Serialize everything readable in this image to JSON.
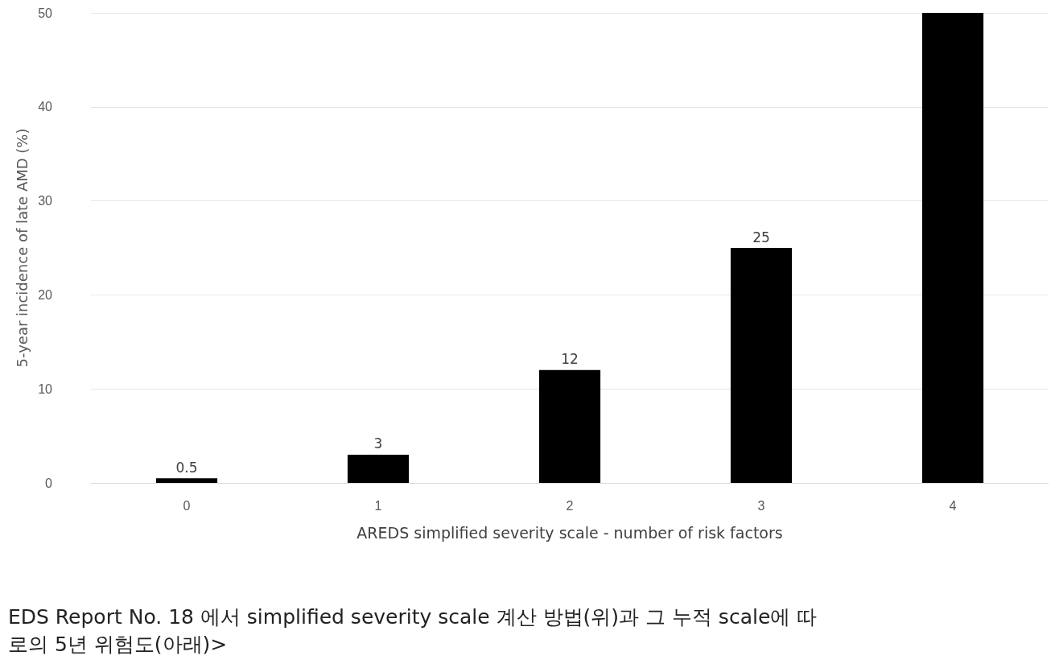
{
  "chart_data": {
    "type": "bar",
    "xlabel": "AREDS simplified severity scale - number of risk factors",
    "ylabel": "5-year incidence of late AMD (%)",
    "categories": [
      "0",
      "1",
      "2",
      "3",
      "4"
    ],
    "values": [
      0.5,
      3,
      12,
      25,
      50
    ],
    "color": "#000000",
    "value_labels": [
      "0.5",
      "3",
      "12",
      "25",
      null
    ],
    "ylim": [
      0,
      50
    ],
    "yticks": [
      0,
      10,
      20,
      30,
      40,
      50
    ],
    "grid": "y",
    "annotations": [
      "EDS Report No. 18 에서 simplified severity scale 계산 방법(위)과 그 누적 scale에 따",
      "로의 5년 위험도(아래)>"
    ]
  }
}
